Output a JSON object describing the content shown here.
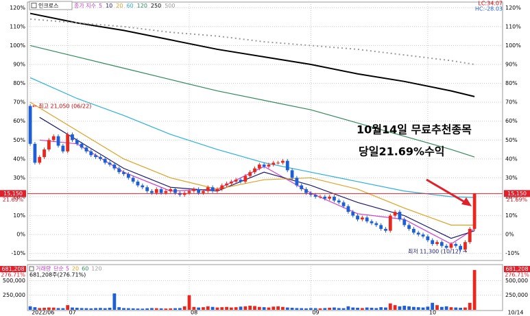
{
  "chart_data": {
    "type": "candlestick",
    "stock_name": "인크로스",
    "legend_title": "종가 지수",
    "lc_label": "LC:34.07",
    "hc_label": "HC:-28.03",
    "up_color": "#e8281e",
    "down_color": "#1f5fd6",
    "xlim": [
      -0.6,
      101
    ],
    "xticks": [
      {
        "value": 0,
        "label": "2022/06"
      },
      {
        "value": 8,
        "label": "07"
      },
      {
        "value": 34,
        "label": "08"
      },
      {
        "value": 60,
        "label": "09"
      },
      {
        "value": 85,
        "label": "10"
      }
    ],
    "last_date": "10/14",
    "ylim": [
      -13,
      123
    ],
    "yticks": [
      {
        "value": -10,
        "label": "-10%"
      },
      {
        "value": 0,
        "label": "0%"
      },
      {
        "value": 10,
        "label": "10%"
      },
      {
        "value": 20,
        "label": "20%"
      },
      {
        "value": 30,
        "label": "30%"
      },
      {
        "value": 40,
        "label": "40%"
      },
      {
        "value": 50,
        "label": "50%"
      },
      {
        "value": 60,
        "label": "60%"
      },
      {
        "value": 70,
        "label": "70%"
      },
      {
        "value": 80,
        "label": "80%"
      },
      {
        "value": 90,
        "label": "90%"
      },
      {
        "value": 100,
        "label": "100%"
      },
      {
        "value": 110,
        "label": "110%"
      },
      {
        "value": 120,
        "label": "120%"
      }
    ],
    "grid": true,
    "open": [
      68,
      48,
      38,
      41,
      45,
      50,
      52,
      47,
      44,
      53,
      50,
      48,
      46,
      44,
      42,
      41,
      40,
      38,
      37,
      35,
      33,
      32,
      30,
      28,
      26,
      25,
      23,
      22,
      24,
      22,
      23,
      24,
      22,
      21,
      22,
      23,
      24,
      22,
      23,
      25,
      23,
      24,
      26,
      27,
      28,
      29,
      28,
      31,
      33,
      35,
      37,
      36,
      37,
      38,
      38,
      39,
      34,
      30,
      26,
      24,
      22,
      21,
      20,
      20,
      19,
      20,
      18,
      17,
      15,
      12,
      10,
      8,
      9,
      7,
      6,
      5,
      3,
      2,
      10,
      12,
      8,
      5,
      3,
      1,
      0,
      -1,
      -3,
      -5,
      -4,
      -6,
      -7,
      -5,
      -6,
      -8,
      -4,
      3
    ],
    "high": [
      69,
      49,
      42,
      46,
      51,
      53,
      53,
      48,
      54,
      54,
      51,
      49,
      47,
      45,
      43,
      42,
      41,
      39,
      38,
      36,
      34,
      33,
      31,
      29,
      27,
      26,
      24,
      25,
      25,
      24,
      25,
      25,
      23,
      23,
      24,
      25,
      25,
      24,
      26,
      26,
      25,
      27,
      28,
      29,
      30,
      30,
      32,
      34,
      36,
      38,
      38,
      38,
      39,
      39,
      40,
      40,
      35,
      31,
      27,
      25,
      23,
      22,
      21,
      21,
      21,
      21,
      19,
      18,
      16,
      13,
      11,
      10,
      10,
      8,
      7,
      6,
      4,
      11,
      13,
      13,
      9,
      6,
      4,
      2,
      1,
      0,
      -2,
      -3,
      -3,
      -5,
      -4,
      -4,
      -5,
      -3,
      4,
      21.69
    ],
    "low": [
      47,
      37,
      37,
      40,
      44,
      49,
      46,
      43,
      43,
      49,
      47,
      45,
      43,
      41,
      40,
      39,
      37,
      36,
      34,
      32,
      31,
      29,
      27,
      25,
      24,
      22,
      21,
      21,
      21,
      21,
      22,
      21,
      20,
      20,
      21,
      22,
      21,
      21,
      22,
      22,
      22,
      23,
      25,
      26,
      27,
      27,
      27,
      30,
      32,
      34,
      35,
      35,
      36,
      37,
      37,
      33,
      29,
      25,
      23,
      21,
      20,
      19,
      19,
      18,
      18,
      17,
      16,
      14,
      11,
      9,
      7,
      7,
      6,
      5,
      4,
      2,
      1,
      1,
      9,
      7,
      4,
      2,
      0,
      -1,
      -2,
      -4,
      -6,
      -6,
      -7,
      -8,
      -8,
      -7,
      -9,
      -9,
      -5,
      2
    ],
    "close": [
      48,
      38,
      41,
      45,
      50,
      52,
      47,
      44,
      53,
      50,
      48,
      46,
      44,
      42,
      41,
      40,
      38,
      37,
      35,
      33,
      32,
      30,
      28,
      26,
      25,
      23,
      22,
      24,
      22,
      23,
      24,
      22,
      21,
      22,
      23,
      24,
      22,
      23,
      25,
      23,
      24,
      26,
      27,
      28,
      29,
      28,
      31,
      33,
      35,
      37,
      36,
      37,
      38,
      38,
      39,
      34,
      30,
      26,
      24,
      22,
      21,
      20,
      20,
      19,
      20,
      18,
      17,
      15,
      12,
      10,
      8,
      9,
      7,
      6,
      5,
      3,
      2,
      10,
      12,
      8,
      5,
      3,
      1,
      0,
      -1,
      -3,
      -5,
      -4,
      -6,
      -7,
      -5,
      -6,
      -8,
      -4,
      3,
      21.69
    ],
    "moving_averages": [
      {
        "name": "5",
        "color": "#d03ad0",
        "x": [
          2,
          10,
          20,
          30,
          40,
          50,
          60,
          70,
          80,
          90,
          95
        ],
        "values": [
          50,
          48,
          33,
          23,
          24,
          36,
          22,
          11,
          8,
          -5,
          3
        ]
      },
      {
        "name": "10",
        "color": "#1a1a6e",
        "x": [
          2,
          10,
          20,
          30,
          40,
          50,
          60,
          70,
          80,
          90,
          95
        ],
        "values": [
          62,
          50,
          35,
          25,
          23,
          33,
          26,
          17,
          10,
          -2,
          2
        ]
      },
      {
        "name": "20",
        "color": "#e0a020",
        "x": [
          0,
          10,
          20,
          30,
          40,
          50,
          60,
          70,
          80,
          90,
          95
        ],
        "values": [
          70,
          55,
          40,
          30,
          24,
          29,
          30,
          24,
          14,
          5,
          5
        ]
      },
      {
        "name": "60",
        "color": "#2ab0e0",
        "x": [
          0,
          10,
          20,
          30,
          40,
          50,
          60,
          70,
          80,
          90,
          95
        ],
        "values": [
          83,
          72,
          63,
          53,
          45,
          38,
          33,
          28,
          23,
          20,
          19.6
        ]
      },
      {
        "name": "120",
        "color": "#2e8b57",
        "x": [
          0,
          10,
          20,
          30,
          40,
          50,
          60,
          70,
          80,
          90,
          95
        ],
        "values": [
          100,
          94,
          88,
          82,
          76,
          71,
          66,
          59,
          52,
          45,
          41
        ]
      },
      {
        "name": "250",
        "color": "#000000",
        "x": [
          0,
          10,
          20,
          30,
          40,
          50,
          60,
          70,
          80,
          90,
          95
        ],
        "values": [
          117,
          112,
          108,
          103,
          98,
          94,
          90,
          85,
          81,
          76,
          73
        ]
      },
      {
        "name": "500",
        "color": "#999999",
        "style": "dotted",
        "x": [
          0,
          10,
          20,
          30,
          40,
          50,
          60,
          70,
          80,
          90,
          95
        ],
        "values": [
          114,
          112,
          110,
          107,
          105,
          102,
          100,
          98,
          95,
          92,
          90
        ]
      }
    ],
    "last_price_label": "15,150",
    "last_change_label": "21.69%",
    "high_note": "← 최고 21,050 (06/22)",
    "low_note": "최저 11,300 (10/12) →",
    "annotations": [
      "10월14일 무료추천종목",
      "당일21.69%수익"
    ],
    "volume": {
      "legend_title": "거래량",
      "ma_label": "단순",
      "ma_names": [
        {
          "name": "5",
          "color": "#d03ad0"
        },
        {
          "name": "20",
          "color": "#e0a020"
        },
        {
          "name": "60",
          "color": "#2e8b57"
        },
        {
          "name": "120",
          "color": "#999999"
        }
      ],
      "last_label": "681,208",
      "last_ratio": "276.71%",
      "summary": "681,208주(276.71%)",
      "ylim": [
        0,
        750000
      ],
      "yticks": [
        {
          "value": 250000,
          "label": "250,000"
        },
        {
          "value": 500000,
          "label": "500,000"
        }
      ],
      "values": [
        60000,
        45000,
        30000,
        35000,
        40000,
        38000,
        30000,
        28000,
        80000,
        40000,
        35000,
        30000,
        28000,
        25000,
        30000,
        32000,
        28000,
        35000,
        280000,
        45000,
        30000,
        28000,
        25000,
        22000,
        20000,
        25000,
        30000,
        28000,
        25000,
        22000,
        25000,
        28000,
        30000,
        60000,
        250000,
        50000,
        40000,
        45000,
        60000,
        50000,
        40000,
        45000,
        50000,
        40000,
        45000,
        55000,
        60000,
        70000,
        65000,
        50000,
        45000,
        40000,
        55000,
        60000,
        50000,
        40000,
        35000,
        30000,
        28000,
        25000,
        30000,
        28000,
        25000,
        30000,
        35000,
        40000,
        30000,
        28000,
        60000,
        40000,
        35000,
        30000,
        40000,
        35000,
        30000,
        45000,
        40000,
        110000,
        80000,
        60000,
        70000,
        60000,
        50000,
        45000,
        40000,
        55000,
        120000,
        80000,
        50000,
        60000,
        45000,
        40000,
        35000,
        40000,
        120000,
        681208
      ]
    }
  }
}
